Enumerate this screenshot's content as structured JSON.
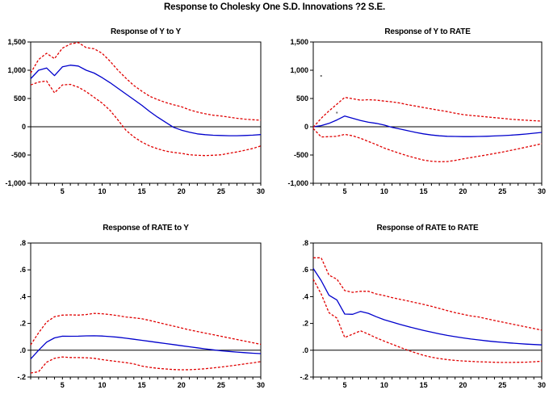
{
  "figure_title": "Response to Cholesky One S.D. Innovations ?2 S.E.",
  "colors": {
    "response_line": "#0000cc",
    "band_line": "#e00000",
    "axis": "#000000",
    "background": "#ffffff",
    "artifact_dot": "#707070"
  },
  "chart_data": [
    {
      "type": "line",
      "title": "Response of Y to Y",
      "x_range": [
        1,
        30
      ],
      "x_step": 1,
      "ylim": [
        -1000,
        1500
      ],
      "grid": false,
      "legend": "none",
      "zero_line": true,
      "y_ticks": [
        {
          "value": 1500,
          "label": "1,500"
        },
        {
          "value": 1000,
          "label": "1,000"
        },
        {
          "value": 500,
          "label": "500"
        },
        {
          "value": 0,
          "label": "0"
        },
        {
          "value": -500,
          "label": "-500"
        },
        {
          "value": -1000,
          "label": "-1,000"
        }
      ],
      "x_ticks": [
        {
          "value": 5,
          "label": "5"
        },
        {
          "value": 10,
          "label": "10"
        },
        {
          "value": 15,
          "label": "15"
        },
        {
          "value": 20,
          "label": "20"
        },
        {
          "value": 25,
          "label": "25"
        },
        {
          "value": 30,
          "label": "30"
        }
      ],
      "series": [
        {
          "name": "response",
          "style": "solid",
          "color": "#0000cc",
          "values": [
            850,
            1000,
            1040,
            905,
            1060,
            1090,
            1075,
            1000,
            950,
            870,
            780,
            680,
            580,
            480,
            380,
            270,
            170,
            80,
            -10,
            -60,
            -95,
            -125,
            -140,
            -150,
            -155,
            -158,
            -158,
            -155,
            -148,
            -138
          ]
        },
        {
          "name": "upper_2se",
          "style": "dashed",
          "color": "#e00000",
          "values": [
            950,
            1190,
            1300,
            1205,
            1390,
            1465,
            1490,
            1400,
            1380,
            1300,
            1160,
            1000,
            860,
            730,
            630,
            540,
            480,
            430,
            390,
            355,
            300,
            260,
            230,
            205,
            190,
            170,
            150,
            135,
            125,
            115
          ]
        },
        {
          "name": "lower_2se",
          "style": "dashed",
          "color": "#e00000",
          "values": [
            740,
            790,
            810,
            600,
            740,
            750,
            700,
            620,
            520,
            420,
            290,
            120,
            -60,
            -180,
            -270,
            -340,
            -390,
            -430,
            -455,
            -470,
            -495,
            -505,
            -510,
            -505,
            -495,
            -470,
            -445,
            -415,
            -385,
            -340
          ]
        }
      ]
    },
    {
      "type": "line",
      "title": "Response of Y to RATE",
      "x_range": [
        1,
        30
      ],
      "x_step": 1,
      "ylim": [
        -1000,
        1500
      ],
      "grid": false,
      "legend": "none",
      "zero_line": true,
      "y_ticks": [
        {
          "value": 1500,
          "label": "1,500"
        },
        {
          "value": 1000,
          "label": "1,000"
        },
        {
          "value": 500,
          "label": "500"
        },
        {
          "value": 0,
          "label": "0"
        },
        {
          "value": -500,
          "label": "-500"
        },
        {
          "value": -1000,
          "label": "-1,000"
        }
      ],
      "x_ticks": [
        {
          "value": 5,
          "label": "5"
        },
        {
          "value": 10,
          "label": "10"
        },
        {
          "value": 15,
          "label": "15"
        },
        {
          "value": 20,
          "label": "20"
        },
        {
          "value": 25,
          "label": "25"
        },
        {
          "value": 30,
          "label": "30"
        }
      ],
      "series": [
        {
          "name": "response",
          "style": "solid",
          "color": "#0000cc",
          "values": [
            0,
            20,
            60,
            120,
            190,
            150,
            110,
            80,
            60,
            30,
            -10,
            -40,
            -70,
            -100,
            -125,
            -145,
            -160,
            -168,
            -172,
            -174,
            -174,
            -172,
            -168,
            -163,
            -157,
            -150,
            -140,
            -128,
            -114,
            -100
          ]
        },
        {
          "name": "upper_2se",
          "style": "dashed",
          "color": "#e00000",
          "values": [
            -10,
            150,
            280,
            400,
            520,
            495,
            470,
            478,
            472,
            455,
            440,
            420,
            390,
            365,
            340,
            315,
            292,
            268,
            240,
            215,
            200,
            188,
            175,
            162,
            148,
            135,
            125,
            115,
            107,
            100
          ]
        },
        {
          "name": "lower_2se",
          "style": "dashed",
          "color": "#e00000",
          "values": [
            -30,
            -180,
            -175,
            -168,
            -135,
            -160,
            -205,
            -260,
            -315,
            -375,
            -425,
            -472,
            -515,
            -555,
            -590,
            -610,
            -618,
            -615,
            -595,
            -568,
            -545,
            -522,
            -498,
            -473,
            -448,
            -420,
            -392,
            -362,
            -332,
            -300
          ]
        }
      ],
      "stray_dots": [
        {
          "x": 2,
          "y": 900
        },
        {
          "x": 4,
          "y": 250
        }
      ]
    },
    {
      "type": "line",
      "title": "Response of RATE to Y",
      "x_range": [
        1,
        30
      ],
      "x_step": 1,
      "ylim": [
        -0.2,
        0.8
      ],
      "grid": false,
      "legend": "none",
      "zero_line": true,
      "y_ticks": [
        {
          "value": 0.8,
          "label": ".8"
        },
        {
          "value": 0.6,
          "label": ".6"
        },
        {
          "value": 0.4,
          "label": ".4"
        },
        {
          "value": 0.2,
          "label": ".2"
        },
        {
          "value": 0.0,
          "label": ".0"
        },
        {
          "value": -0.2,
          "label": "-.2"
        }
      ],
      "x_ticks": [
        {
          "value": 5,
          "label": "5"
        },
        {
          "value": 10,
          "label": "10"
        },
        {
          "value": 15,
          "label": "15"
        },
        {
          "value": 20,
          "label": "20"
        },
        {
          "value": 25,
          "label": "25"
        },
        {
          "value": 30,
          "label": "30"
        }
      ],
      "series": [
        {
          "name": "response",
          "style": "solid",
          "color": "#0000cc",
          "values": [
            -0.065,
            0.0,
            0.06,
            0.092,
            0.105,
            0.104,
            0.105,
            0.107,
            0.108,
            0.106,
            0.102,
            0.097,
            0.09,
            0.082,
            0.074,
            0.066,
            0.058,
            0.05,
            0.042,
            0.034,
            0.026,
            0.018,
            0.01,
            0.003,
            -0.004,
            -0.009,
            -0.014,
            -0.018,
            -0.022,
            -0.025
          ]
        },
        {
          "name": "upper_2se",
          "style": "dashed",
          "color": "#e00000",
          "values": [
            0.04,
            0.13,
            0.21,
            0.25,
            0.262,
            0.264,
            0.262,
            0.266,
            0.275,
            0.272,
            0.266,
            0.258,
            0.248,
            0.242,
            0.235,
            0.222,
            0.208,
            0.194,
            0.18,
            0.166,
            0.152,
            0.14,
            0.128,
            0.116,
            0.104,
            0.092,
            0.08,
            0.068,
            0.056,
            0.044
          ]
        },
        {
          "name": "lower_2se",
          "style": "dashed",
          "color": "#e00000",
          "values": [
            -0.17,
            -0.16,
            -0.09,
            -0.06,
            -0.05,
            -0.054,
            -0.055,
            -0.056,
            -0.06,
            -0.07,
            -0.078,
            -0.085,
            -0.092,
            -0.102,
            -0.118,
            -0.128,
            -0.135,
            -0.14,
            -0.144,
            -0.146,
            -0.145,
            -0.142,
            -0.138,
            -0.132,
            -0.125,
            -0.118,
            -0.11,
            -0.102,
            -0.094,
            -0.085
          ]
        }
      ]
    },
    {
      "type": "line",
      "title": "Response of RATE to RATE",
      "x_range": [
        1,
        30
      ],
      "x_step": 1,
      "ylim": [
        -0.2,
        0.8
      ],
      "grid": false,
      "legend": "none",
      "zero_line": true,
      "y_ticks": [
        {
          "value": 0.8,
          "label": ".8"
        },
        {
          "value": 0.6,
          "label": ".6"
        },
        {
          "value": 0.4,
          "label": ".4"
        },
        {
          "value": 0.2,
          "label": ".2"
        },
        {
          "value": 0.0,
          "label": ".0"
        },
        {
          "value": -0.2,
          "label": "-.2"
        }
      ],
      "x_ticks": [
        {
          "value": 5,
          "label": "5"
        },
        {
          "value": 10,
          "label": "10"
        },
        {
          "value": 15,
          "label": "15"
        },
        {
          "value": 20,
          "label": "20"
        },
        {
          "value": 25,
          "label": "25"
        },
        {
          "value": 30,
          "label": "30"
        }
      ],
      "series": [
        {
          "name": "response",
          "style": "solid",
          "color": "#0000cc",
          "values": [
            0.61,
            0.52,
            0.41,
            0.375,
            0.27,
            0.268,
            0.29,
            0.275,
            0.25,
            0.228,
            0.21,
            0.193,
            0.177,
            0.162,
            0.148,
            0.135,
            0.122,
            0.111,
            0.101,
            0.092,
            0.084,
            0.077,
            0.07,
            0.064,
            0.059,
            0.054,
            0.05,
            0.046,
            0.043,
            0.04
          ]
        },
        {
          "name": "upper_2se",
          "style": "dashed",
          "color": "#e00000",
          "values": [
            0.69,
            0.69,
            0.56,
            0.53,
            0.445,
            0.432,
            0.44,
            0.44,
            0.42,
            0.408,
            0.393,
            0.38,
            0.368,
            0.355,
            0.342,
            0.328,
            0.312,
            0.296,
            0.281,
            0.268,
            0.256,
            0.248,
            0.235,
            0.222,
            0.21,
            0.198,
            0.186,
            0.174,
            0.162,
            0.15
          ]
        },
        {
          "name": "lower_2se",
          "style": "dashed",
          "color": "#e00000",
          "values": [
            0.53,
            0.42,
            0.28,
            0.24,
            0.095,
            0.12,
            0.145,
            0.12,
            0.092,
            0.068,
            0.045,
            0.022,
            0.0,
            -0.02,
            -0.038,
            -0.052,
            -0.062,
            -0.07,
            -0.076,
            -0.08,
            -0.083,
            -0.086,
            -0.088,
            -0.09,
            -0.091,
            -0.091,
            -0.09,
            -0.089,
            -0.086,
            -0.082
          ]
        }
      ]
    }
  ]
}
